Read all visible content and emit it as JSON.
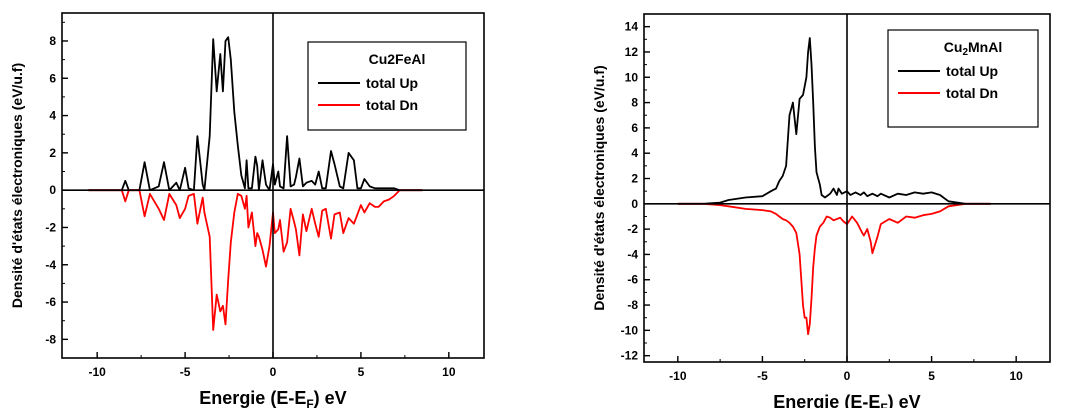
{
  "chart_data": [
    {
      "type": "line",
      "title": "Cu2FeAl",
      "xlabel": "Energie (E-E",
      "xlabel_sub": "F",
      "xlabel_suffix": ") eV",
      "ylabel": "Densité d'états électroniques (eV/u.f)",
      "xlim": [
        -12,
        12
      ],
      "ylim": [
        -9,
        9.5
      ],
      "xticks": [
        -10,
        -5,
        0,
        5,
        10
      ],
      "yticks": [
        -8,
        -6,
        -4,
        -2,
        0,
        2,
        4,
        6,
        8
      ],
      "legend_position": "top-right",
      "series": [
        {
          "name": "total Up",
          "color": "#000000",
          "x": [
            -10.5,
            -9,
            -8.6,
            -8.4,
            -8.2,
            -7.6,
            -7.3,
            -7.0,
            -6.5,
            -6.2,
            -5.9,
            -5.5,
            -5.3,
            -5.0,
            -4.8,
            -4.5,
            -4.3,
            -4.0,
            -3.9,
            -3.6,
            -3.4,
            -3.2,
            -3.0,
            -2.85,
            -2.7,
            -2.55,
            -2.4,
            -2.2,
            -2.0,
            -1.8,
            -1.6,
            -1.5,
            -1.4,
            -1.2,
            -1.0,
            -0.9,
            -0.8,
            -0.6,
            -0.4,
            -0.2,
            0.0,
            0.1,
            0.3,
            0.4,
            0.6,
            0.8,
            1.0,
            1.2,
            1.3,
            1.5,
            1.7,
            1.9,
            2.2,
            2.4,
            2.6,
            2.8,
            3.0,
            3.3,
            3.5,
            3.8,
            4.0,
            4.3,
            4.6,
            4.8,
            5.0,
            5.2,
            5.5,
            5.8,
            6.0,
            6.3,
            6.6,
            6.9,
            7.2,
            8.5
          ],
          "values": [
            0,
            0,
            0,
            0.5,
            0,
            0,
            1.5,
            0,
            0.2,
            1.5,
            0,
            0.4,
            0,
            1.2,
            0.1,
            0,
            2.9,
            0.3,
            0,
            2.9,
            8.1,
            5.3,
            7.3,
            5.3,
            8.0,
            8.2,
            7.0,
            4.2,
            2.4,
            0.8,
            0.1,
            1.6,
            0.1,
            0.1,
            1.8,
            1.3,
            0,
            1.6,
            0.3,
            0,
            1.4,
            0.3,
            1.0,
            0.2,
            0.1,
            2.9,
            0.2,
            0.3,
            0.7,
            1.7,
            0.2,
            0.4,
            0.5,
            0.3,
            1.0,
            0.1,
            0.1,
            2.1,
            1.4,
            0.2,
            0.1,
            2.0,
            1.6,
            0.1,
            0.1,
            0.6,
            0.2,
            0.1,
            0.1,
            0.1,
            0.1,
            0.1,
            0,
            0
          ]
        },
        {
          "name": "total Dn",
          "color": "#ff0000",
          "x": [
            -10.5,
            -9,
            -8.6,
            -8.4,
            -8.2,
            -7.6,
            -7.3,
            -7.0,
            -6.5,
            -6.2,
            -5.9,
            -5.5,
            -5.3,
            -5.0,
            -4.8,
            -4.5,
            -4.3,
            -4.0,
            -3.9,
            -3.6,
            -3.4,
            -3.2,
            -3.0,
            -2.85,
            -2.7,
            -2.55,
            -2.4,
            -2.2,
            -2.0,
            -1.8,
            -1.6,
            -1.5,
            -1.4,
            -1.2,
            -1.0,
            -0.9,
            -0.8,
            -0.6,
            -0.4,
            -0.2,
            0.0,
            0.1,
            0.3,
            0.4,
            0.6,
            0.8,
            1.0,
            1.2,
            1.3,
            1.5,
            1.7,
            1.9,
            2.2,
            2.4,
            2.6,
            2.8,
            3.0,
            3.3,
            3.5,
            3.8,
            4.0,
            4.3,
            4.6,
            4.8,
            5.0,
            5.2,
            5.5,
            5.8,
            6.0,
            6.3,
            6.6,
            6.9,
            7.2,
            8.5
          ],
          "values": [
            0,
            0,
            0,
            -0.6,
            0,
            0,
            -1.4,
            -0.2,
            -1.0,
            -1.6,
            -0.2,
            -0.8,
            -1.5,
            -1.0,
            -0.3,
            -0.2,
            -1.8,
            -0.4,
            -1.2,
            -2.5,
            -7.5,
            -5.6,
            -6.5,
            -6.2,
            -7.2,
            -4.8,
            -2.8,
            -1.2,
            -0.2,
            -0.3,
            -1.0,
            -0.3,
            -2.0,
            -1.2,
            -3.0,
            -2.3,
            -2.5,
            -3.2,
            -4.1,
            -3.0,
            -1.2,
            -2.3,
            -2.1,
            -1.6,
            -3.3,
            -2.8,
            -1.0,
            -1.7,
            -2.1,
            -3.5,
            -1.3,
            -2.2,
            -1.0,
            -1.8,
            -2.5,
            -1.1,
            -1.0,
            -2.6,
            -1.3,
            -1.2,
            -2.3,
            -1.5,
            -1.8,
            -1.3,
            -0.8,
            -1.2,
            -0.7,
            -0.9,
            -0.9,
            -0.6,
            -0.5,
            -0.3,
            0,
            0
          ]
        }
      ]
    },
    {
      "type": "line",
      "title": "Cu",
      "title_sub": "2",
      "title_suffix": "MnAl",
      "xlabel": "Energie (E-E",
      "xlabel_sub": "F",
      "xlabel_suffix": ") eV",
      "ylabel": "Densité d'états électroniques (eV/u.f)",
      "xlim": [
        -12,
        12
      ],
      "ylim": [
        -12.5,
        15
      ],
      "xticks": [
        -10,
        -5,
        0,
        5,
        10
      ],
      "yticks": [
        -12,
        -10,
        -8,
        -6,
        -4,
        -2,
        0,
        2,
        4,
        6,
        8,
        10,
        12,
        14
      ],
      "legend_position": "top-right",
      "series": [
        {
          "name": "total Up",
          "color": "#000000",
          "x": [
            -10,
            -8.5,
            -7.5,
            -7.0,
            -6.0,
            -5.0,
            -4.5,
            -4.2,
            -4.0,
            -3.8,
            -3.6,
            -3.5,
            -3.4,
            -3.2,
            -3.0,
            -2.8,
            -2.6,
            -2.4,
            -2.3,
            -2.2,
            -2.1,
            -2.0,
            -1.9,
            -1.8,
            -1.6,
            -1.5,
            -1.3,
            -1.0,
            -0.8,
            -0.6,
            -0.5,
            -0.3,
            0.0,
            0.2,
            0.5,
            0.8,
            1.0,
            1.2,
            1.5,
            1.8,
            2.0,
            2.5,
            3.0,
            3.5,
            4.0,
            4.5,
            5.0,
            5.5,
            6.0,
            7.0,
            8.5
          ],
          "values": [
            0,
            0,
            0.1,
            0.3,
            0.5,
            0.6,
            1.0,
            1.2,
            1.8,
            2.2,
            3.0,
            5.0,
            7.0,
            8.0,
            5.5,
            8.3,
            8.6,
            10.0,
            12.0,
            13.1,
            11.0,
            8.0,
            4.5,
            2.5,
            1.5,
            0.7,
            0.5,
            0.8,
            1.2,
            0.7,
            1.2,
            0.8,
            1.0,
            0.7,
            0.9,
            0.7,
            0.9,
            0.6,
            0.8,
            0.6,
            0.8,
            0.5,
            0.8,
            0.7,
            0.9,
            0.8,
            0.9,
            0.7,
            0.2,
            0,
            0
          ]
        },
        {
          "name": "total Dn",
          "color": "#ff0000",
          "x": [
            -10,
            -8.5,
            -7.5,
            -7.0,
            -6.0,
            -5.0,
            -4.5,
            -4.2,
            -4.0,
            -3.8,
            -3.6,
            -3.4,
            -3.2,
            -3.0,
            -2.8,
            -2.6,
            -2.5,
            -2.4,
            -2.3,
            -2.2,
            -2.1,
            -2.0,
            -1.9,
            -1.8,
            -1.6,
            -1.4,
            -1.2,
            -1.0,
            -0.8,
            -0.6,
            -0.4,
            -0.2,
            0.0,
            0.3,
            0.6,
            0.9,
            1.0,
            1.2,
            1.4,
            1.5,
            1.8,
            2.0,
            2.5,
            3.0,
            3.5,
            4.0,
            4.5,
            5.0,
            5.5,
            6.0,
            7.0,
            8.5
          ],
          "values": [
            0,
            0,
            -0.1,
            -0.2,
            -0.4,
            -0.5,
            -0.6,
            -0.8,
            -1.0,
            -1.2,
            -1.3,
            -1.5,
            -1.8,
            -2.3,
            -4.0,
            -8.0,
            -9.0,
            -9.0,
            -10.3,
            -9.5,
            -7.5,
            -5.0,
            -3.5,
            -2.5,
            -1.8,
            -1.5,
            -1.0,
            -1.1,
            -1.3,
            -1.2,
            -1.1,
            -1.4,
            -1.6,
            -1.0,
            -1.5,
            -2.3,
            -2.5,
            -2.0,
            -3.0,
            -3.9,
            -2.6,
            -1.6,
            -1.2,
            -1.5,
            -1.0,
            -1.1,
            -0.9,
            -0.8,
            -0.6,
            -0.2,
            0,
            0
          ]
        }
      ]
    }
  ]
}
